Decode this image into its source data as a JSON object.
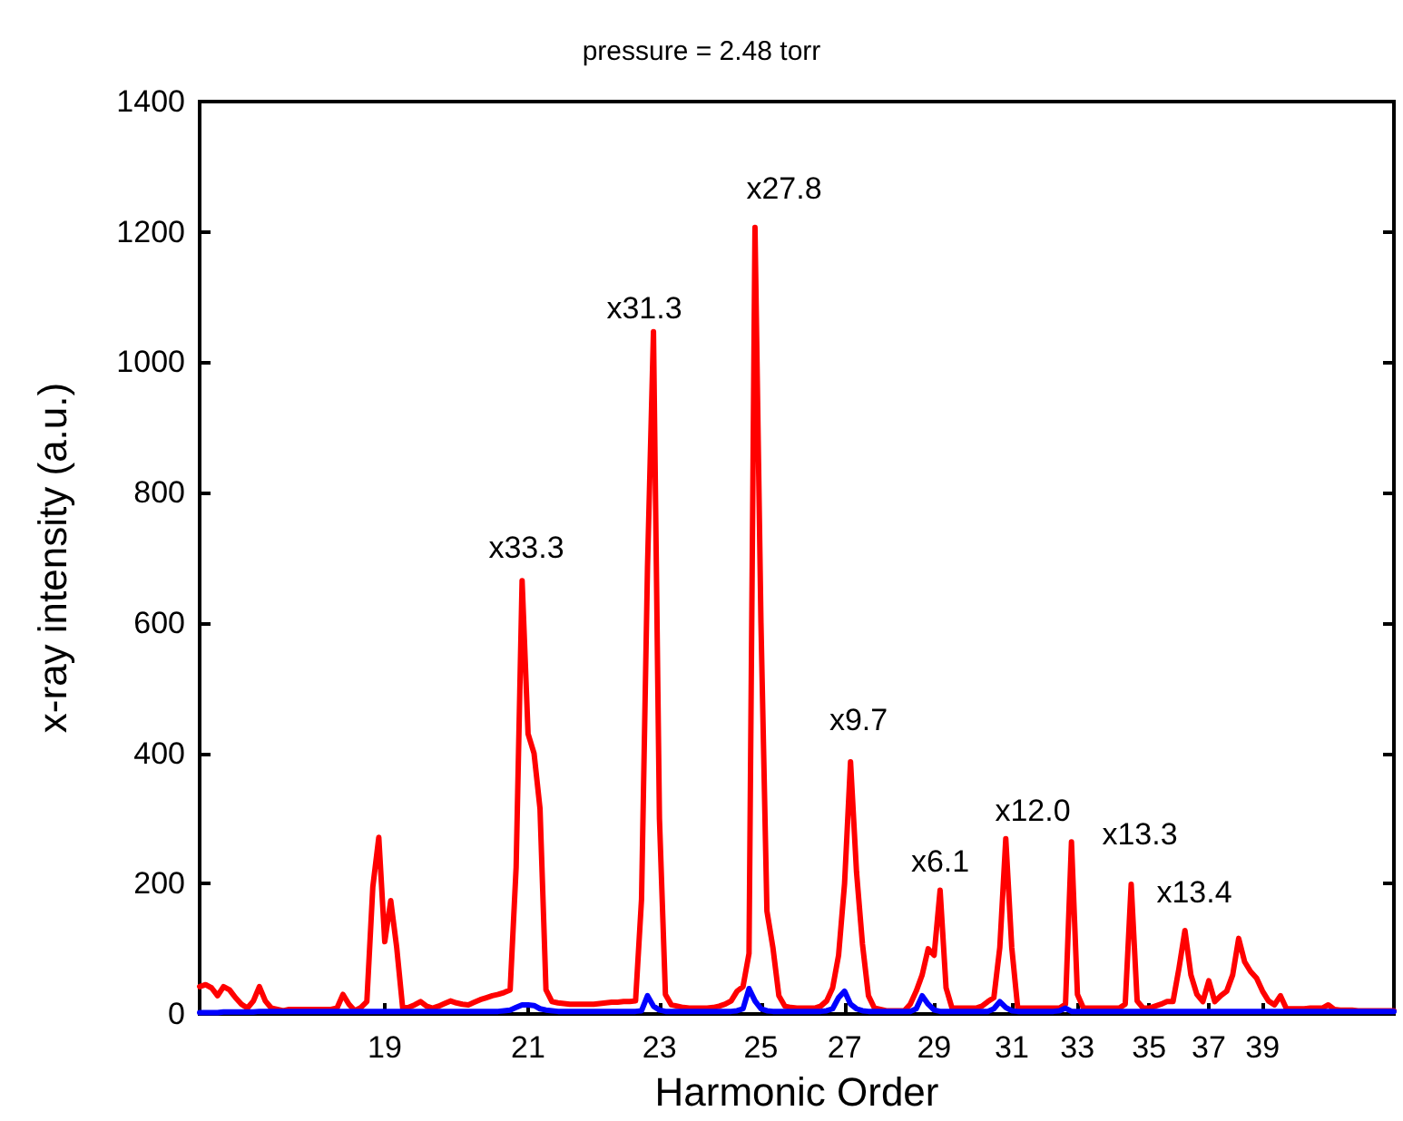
{
  "chart_data": {
    "type": "line",
    "title": "pressure = 2.48 torr",
    "xlabel": "Harmonic Order",
    "ylabel": "x-ray intensity (a.u.)",
    "categories": [
      null,
      null,
      null,
      null,
      null,
      null,
      null,
      null,
      null,
      null,
      null,
      null,
      null,
      null,
      null,
      null,
      null,
      null,
      null,
      null,
      null,
      null,
      null,
      null,
      null,
      null,
      null,
      null,
      null,
      null,
      null,
      "19",
      null,
      null,
      null,
      null,
      null,
      null,
      null,
      null,
      null,
      null,
      null,
      null,
      null,
      null,
      null,
      null,
      null,
      null,
      null,
      null,
      null,
      null,
      null,
      "21",
      null,
      null,
      null,
      null,
      null,
      null,
      null,
      null,
      null,
      null,
      null,
      null,
      null,
      null,
      null,
      null,
      null,
      null,
      null,
      null,
      null,
      "23",
      null,
      null,
      null,
      null,
      null,
      null,
      null,
      null,
      null,
      null,
      null,
      null,
      null,
      null,
      null,
      null,
      "25",
      null,
      null,
      null,
      null,
      null,
      null,
      null,
      null,
      null,
      null,
      null,
      null,
      null,
      "27",
      null,
      null,
      null,
      null,
      null,
      null,
      null,
      null,
      null,
      null,
      null,
      null,
      null,
      null,
      "29",
      null,
      null,
      null,
      null,
      null,
      null,
      null,
      null,
      null,
      null,
      null,
      null,
      "31",
      null,
      null,
      null,
      null,
      null,
      null,
      null,
      null,
      null,
      null,
      "33",
      null,
      null,
      null,
      null,
      null,
      null,
      null,
      null,
      null,
      null,
      null,
      "35",
      null,
      null,
      null,
      null,
      null,
      null,
      null,
      null,
      null,
      "37",
      null,
      null,
      null,
      null,
      null,
      null,
      null,
      null,
      "39",
      null,
      null,
      null,
      null,
      null,
      null,
      null,
      null,
      null,
      null,
      null,
      null,
      null,
      null,
      null,
      null,
      null,
      null,
      null,
      null,
      null,
      null
    ],
    "ylim": [
      0,
      1400
    ],
    "yticks": [
      0,
      200,
      400,
      600,
      800,
      1000,
      1200,
      1400
    ],
    "grid": false,
    "marker": "none",
    "line_style": "solid",
    "series": [
      {
        "color": "#ff0000",
        "values": [
          42,
          45,
          40,
          28,
          42,
          37,
          25,
          15,
          9,
          20,
          42,
          20,
          9,
          7,
          5,
          7,
          7,
          7,
          7,
          7,
          7,
          7,
          7,
          9,
          30,
          15,
          5,
          10,
          19,
          195,
          271,
          111,
          174,
          102,
          9,
          10,
          14,
          19,
          12,
          9,
          12,
          16,
          20,
          17,
          15,
          14,
          18,
          22,
          25,
          28,
          30,
          33,
          37,
          225,
          665,
          430,
          400,
          315,
          37,
          19,
          17,
          16,
          15,
          15,
          15,
          15,
          15,
          16,
          17,
          18,
          18,
          19,
          19,
          20,
          176,
          686,
          1047,
          300,
          30,
          14,
          12,
          10,
          9,
          9,
          9,
          9,
          10,
          12,
          15,
          20,
          35,
          42,
          93,
          1207,
          600,
          158,
          102,
          28,
          12,
          10,
          9,
          9,
          9,
          9,
          12,
          20,
          40,
          90,
          200,
          387,
          218,
          107,
          28,
          9,
          7,
          5,
          5,
          5,
          5,
          15,
          35,
          60,
          100,
          90,
          190,
          40,
          9,
          9,
          9,
          9,
          9,
          12,
          19,
          25,
          102,
          269,
          102,
          9,
          9,
          9,
          9,
          9,
          9,
          9,
          9,
          15,
          264,
          30,
          9,
          9,
          9,
          9,
          9,
          9,
          9,
          15,
          199,
          20,
          9,
          9,
          12,
          15,
          19,
          19,
          70,
          128,
          60,
          30,
          19,
          51,
          19,
          28,
          35,
          60,
          116,
          80,
          65,
          55,
          35,
          20,
          14,
          28,
          8,
          8,
          8,
          8,
          9,
          9,
          9,
          14,
          7,
          6,
          6,
          6,
          5,
          5,
          5,
          5,
          5,
          5,
          5
        ]
      },
      {
        "color": "#0000ff",
        "values": [
          2,
          2,
          2,
          2,
          3,
          3,
          3,
          3,
          3,
          3,
          4,
          4,
          4,
          4,
          4,
          4,
          4,
          4,
          4,
          4,
          4,
          4,
          4,
          4,
          4,
          4,
          4,
          4,
          4,
          4,
          4,
          4,
          4,
          4,
          4,
          4,
          4,
          4,
          4,
          4,
          4,
          4,
          4,
          4,
          4,
          4,
          4,
          4,
          4,
          4,
          4,
          5,
          6,
          10,
          14,
          14,
          13,
          8,
          6,
          5,
          4,
          4,
          4,
          4,
          4,
          4,
          4,
          4,
          4,
          4,
          4,
          4,
          4,
          4,
          5,
          28,
          12,
          6,
          4,
          4,
          4,
          4,
          4,
          4,
          4,
          4,
          4,
          4,
          4,
          4,
          5,
          8,
          39,
          20,
          8,
          5,
          4,
          4,
          4,
          4,
          4,
          4,
          4,
          4,
          4,
          5,
          8,
          25,
          35,
          15,
          8,
          5,
          4,
          4,
          4,
          4,
          4,
          4,
          4,
          4,
          8,
          28,
          15,
          6,
          4,
          4,
          4,
          4,
          4,
          4,
          4,
          4,
          4,
          8,
          19,
          10,
          5,
          4,
          4,
          4,
          4,
          4,
          4,
          4,
          5,
          9,
          4,
          4,
          4,
          4,
          4,
          4,
          4,
          4,
          4,
          4,
          4,
          4,
          4,
          4,
          4,
          4,
          4,
          4,
          4,
          4,
          4,
          4,
          4,
          4,
          4,
          4,
          4,
          4,
          4,
          4,
          4,
          4,
          4,
          4,
          4,
          4,
          4,
          4,
          4,
          4,
          4,
          4,
          4,
          4,
          4,
          4,
          4,
          4,
          4,
          4,
          4,
          4,
          4,
          4,
          4
        ]
      }
    ],
    "annotations": [
      "x33.3",
      "x31.3",
      "x27.8",
      "x9.7",
      "x6.1",
      "x12.0",
      "x13.3",
      "x13.4"
    ]
  }
}
